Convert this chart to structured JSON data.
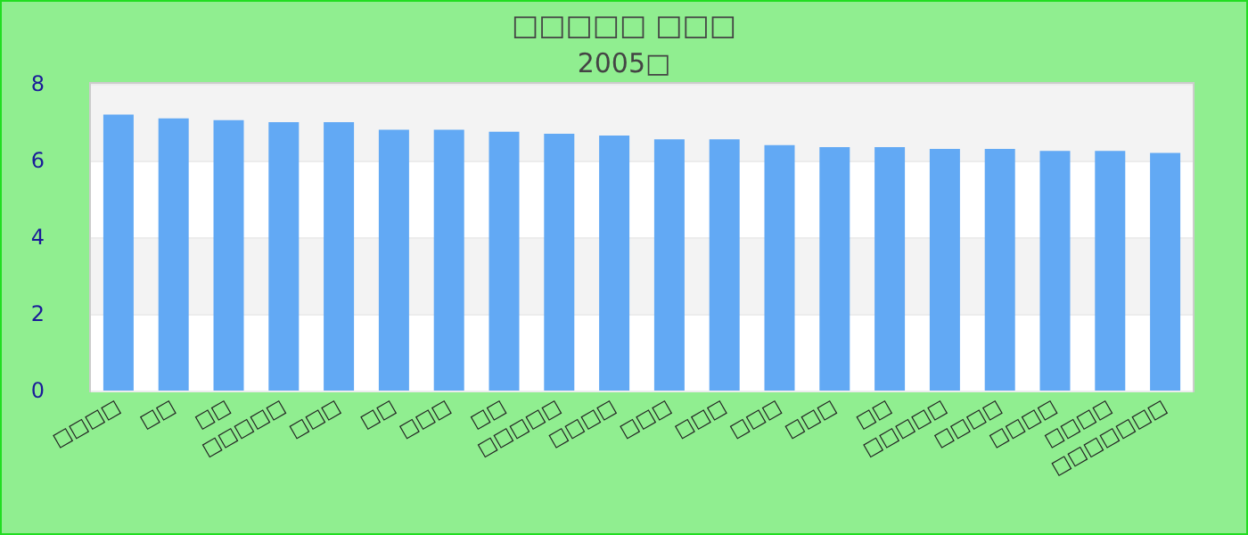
{
  "chart_data": {
    "type": "bar",
    "title": "□□□□□ □□□",
    "subtitle": "2005□",
    "categories": [
      "□□□□",
      "□□",
      "□□",
      "□□□□□",
      "□□□",
      "□□",
      "□□□",
      "□□",
      "□□□□□",
      "□□□□",
      "□□□",
      "□□□",
      "□□□",
      "□□□",
      "□□",
      "□□□□□",
      "□□□□",
      "□□□□",
      "□□□□",
      "□□□□□□□"
    ],
    "values": [
      7.2,
      7.1,
      7.05,
      7.0,
      7.0,
      6.8,
      6.8,
      6.75,
      6.7,
      6.65,
      6.55,
      6.55,
      6.4,
      6.35,
      6.35,
      6.3,
      6.3,
      6.25,
      6.25,
      6.2
    ],
    "color": "#62a9f4",
    "ylim": [
      0,
      8
    ],
    "yticks": [
      0,
      2,
      4,
      6,
      8
    ],
    "grid": "y"
  }
}
